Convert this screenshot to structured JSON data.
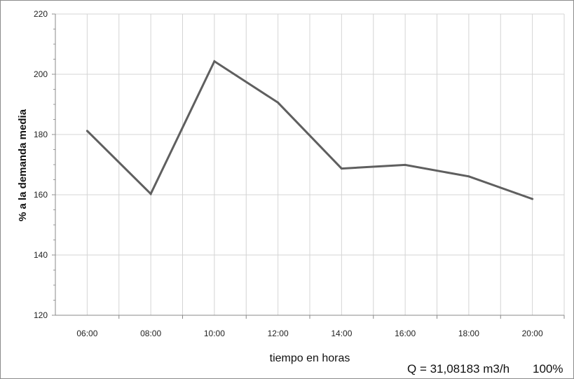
{
  "chart_data": {
    "type": "line",
    "title": "",
    "xlabel": "tiempo en horas",
    "ylabel": "% a la demanda media",
    "ylim": [
      120,
      220
    ],
    "yticks": [
      "120",
      "140",
      "160",
      "180",
      "200",
      "220"
    ],
    "categories": [
      "06:00",
      "08:00",
      "10:00",
      "12:00",
      "14:00",
      "16:00",
      "18:00",
      "20:00"
    ],
    "series": [
      {
        "values": [
          181.2,
          160.3,
          204.3,
          190.6,
          168.7,
          169.9,
          166.1,
          158.6
        ]
      }
    ],
    "grid": true,
    "line_color": "#5f5f5f",
    "grid_color": "#d4d4d4"
  },
  "footer": {
    "flow": "Q = 31,08183 m3/h",
    "percent": "100%"
  }
}
